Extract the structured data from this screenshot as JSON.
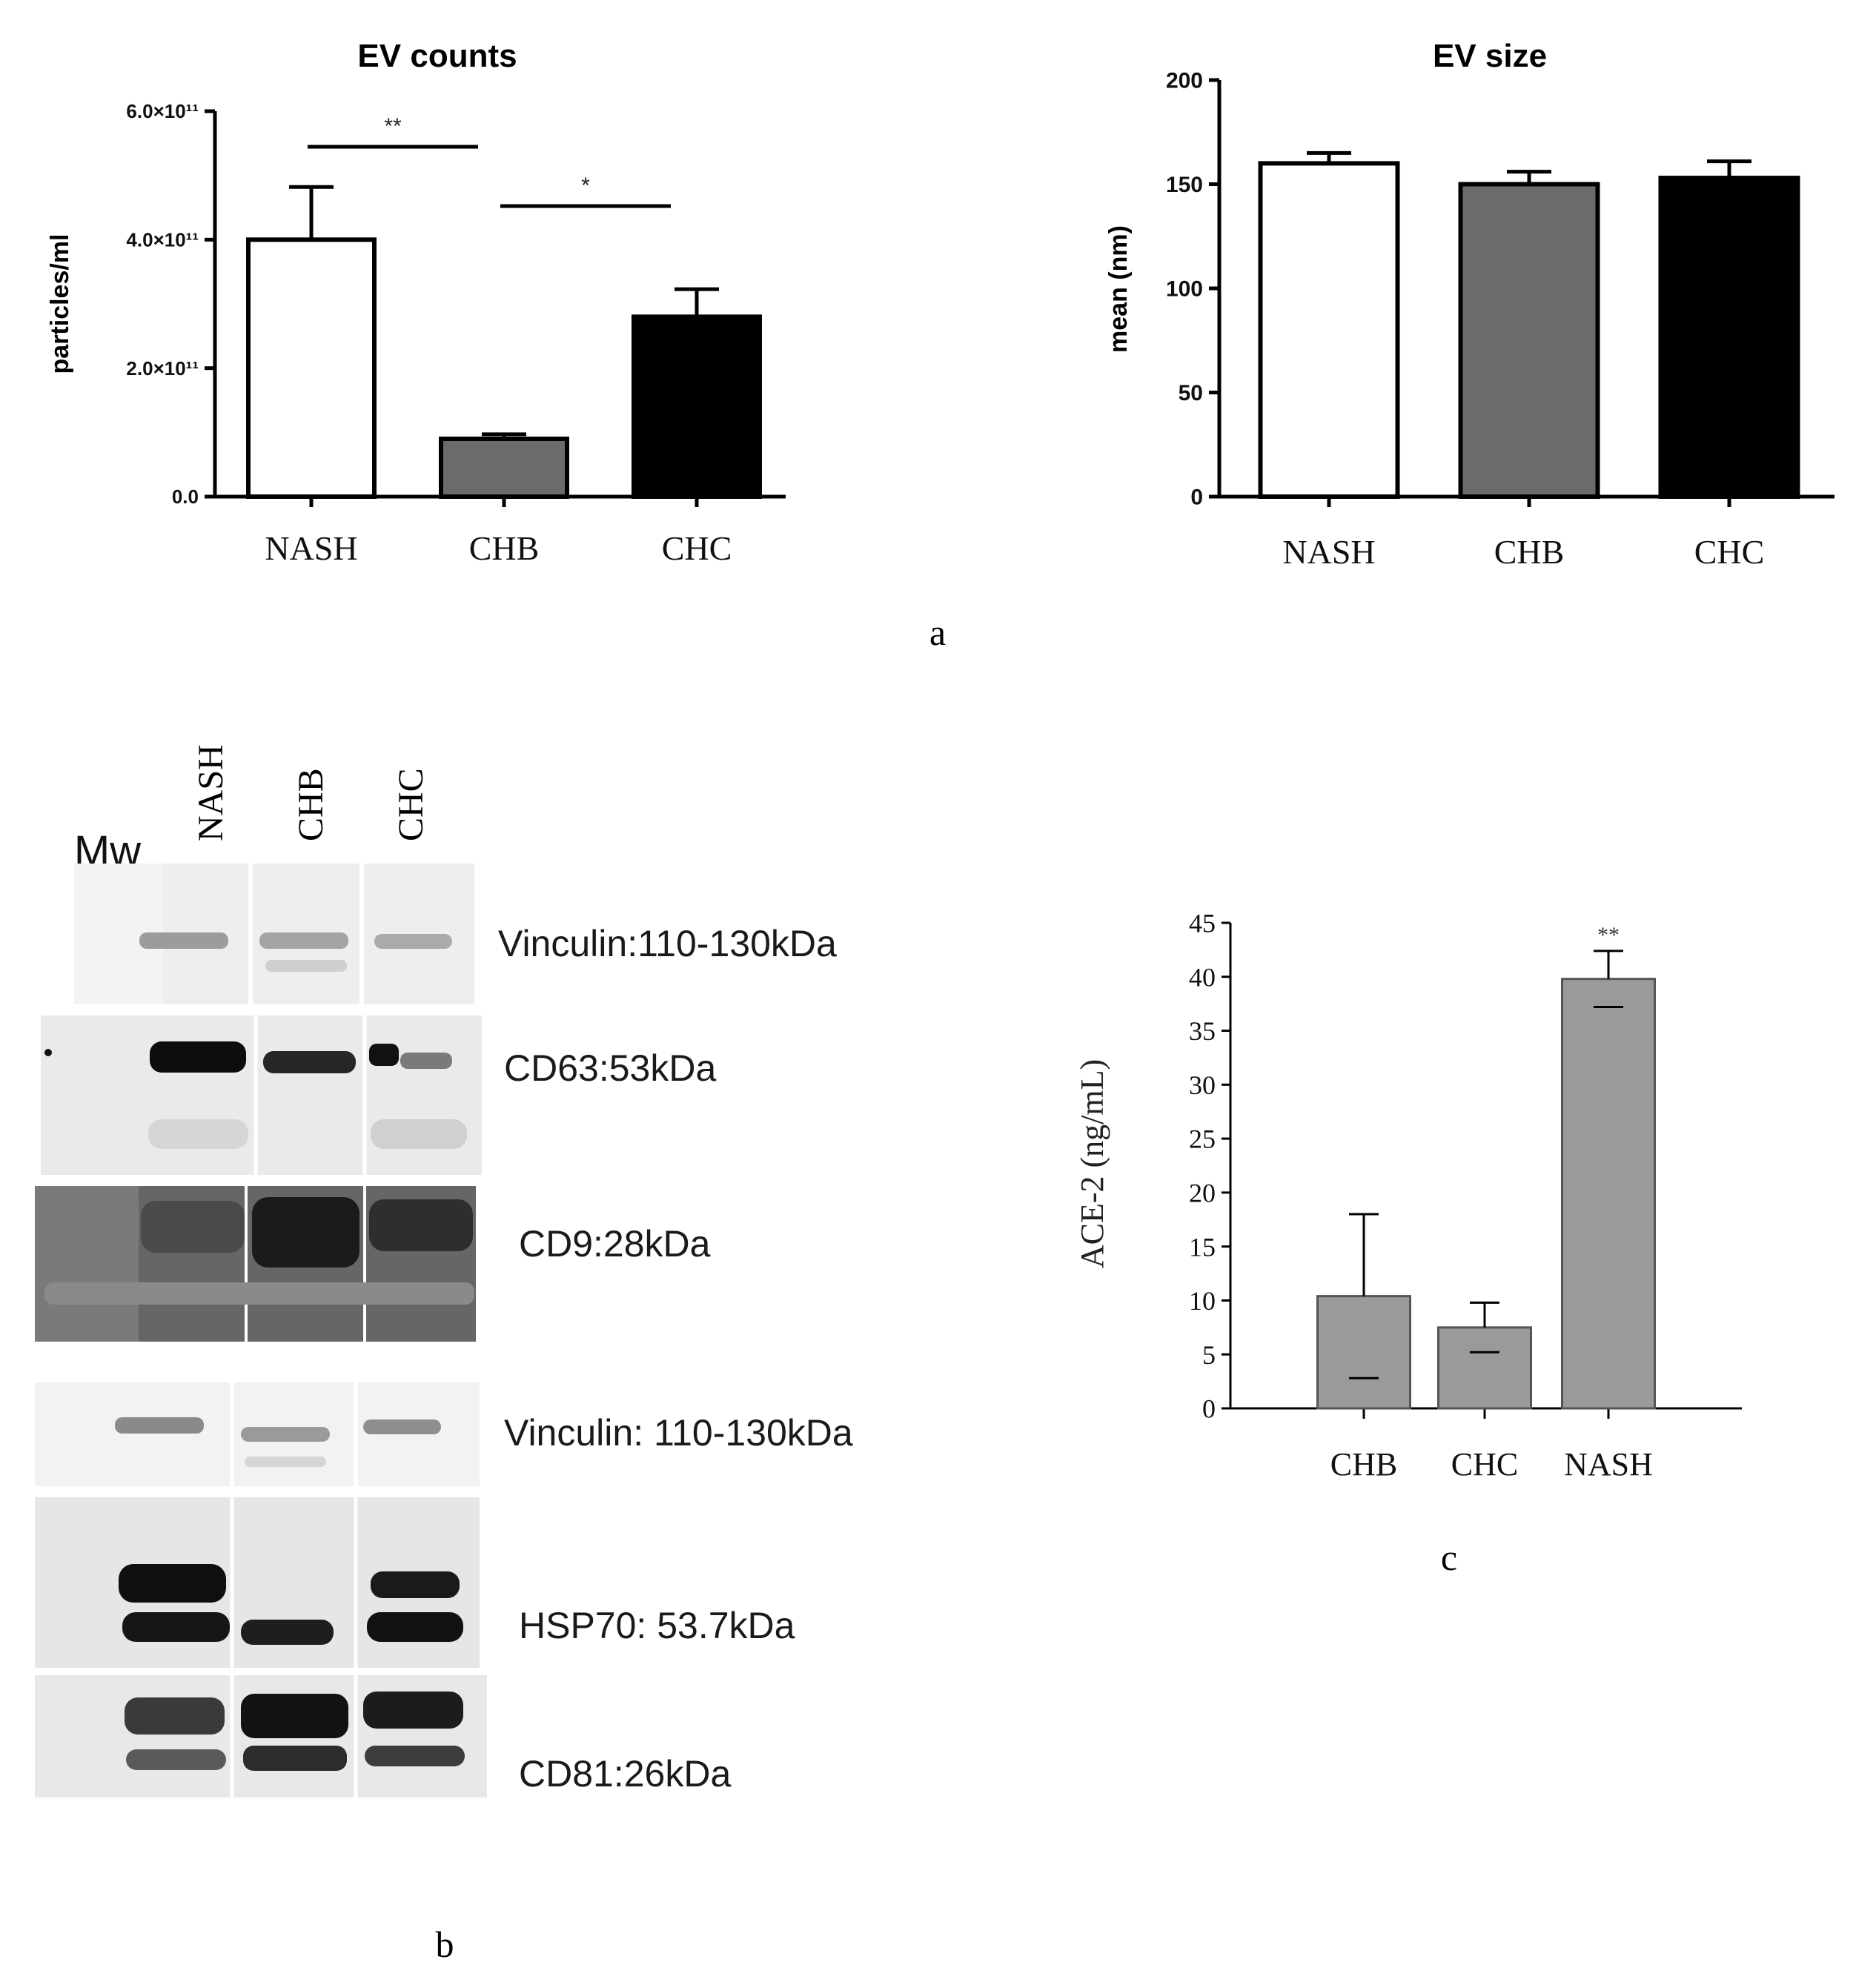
{
  "chart_data": [
    {
      "panel": "a",
      "type": "bar",
      "title": "EV counts",
      "ylabel": "particles/ml",
      "xlabel": "",
      "categories": [
        "NASH",
        "CHB",
        "CHC"
      ],
      "values": [
        400000000000.0,
        90000000000.0,
        280000000000.0
      ],
      "errors": [
        82000000000.0,
        7000000000.0,
        43000000000.0
      ],
      "bar_colors": [
        "#ffffff",
        "#6b6b6b",
        "#000000"
      ],
      "ylim": [
        0,
        600000000000.0
      ],
      "yticks": [
        0,
        200000000000.0,
        400000000000.0,
        600000000000.0
      ],
      "ytick_labels": [
        "0.0",
        "2.0×10¹¹",
        "4.0×10¹¹",
        "6.0×10¹¹"
      ],
      "significance": [
        {
          "from": "NASH",
          "to": "CHB",
          "label": "**"
        },
        {
          "from": "CHB",
          "to": "CHC",
          "label": "*"
        }
      ],
      "grid": false
    },
    {
      "panel": "a",
      "type": "bar",
      "title": "EV size",
      "ylabel": "mean (nm)",
      "xlabel": "",
      "categories": [
        "NASH",
        "CHB",
        "CHC"
      ],
      "values": [
        160,
        150,
        153
      ],
      "errors": [
        5,
        6,
        8
      ],
      "bar_colors": [
        "#ffffff",
        "#6b6b6b",
        "#000000"
      ],
      "ylim": [
        0,
        200
      ],
      "yticks": [
        0,
        50,
        100,
        150,
        200
      ],
      "ytick_labels": [
        "0",
        "50",
        "100",
        "150",
        "200"
      ],
      "grid": false
    },
    {
      "panel": "c",
      "type": "bar",
      "title": "",
      "ylabel": "ACE-2 (ng/mL)",
      "xlabel": "",
      "categories": [
        "CHB",
        "CHC",
        "NASH"
      ],
      "values": [
        10.4,
        7.5,
        39.8
      ],
      "errors": [
        7.6,
        2.3,
        2.6
      ],
      "bar_colors": [
        "#9a9a9a",
        "#9a9a9a",
        "#9a9a9a"
      ],
      "ylim": [
        0,
        45
      ],
      "yticks": [
        0,
        5,
        10,
        15,
        20,
        25,
        30,
        35,
        40,
        45
      ],
      "ytick_labels": [
        "0",
        "5",
        "10",
        "15",
        "20",
        "25",
        "30",
        "35",
        "40",
        "45"
      ],
      "annotations": [
        {
          "category": "NASH",
          "label": "**"
        }
      ],
      "grid": false
    }
  ],
  "panel_labels": {
    "a": "a",
    "b": "b",
    "c": "c"
  },
  "western_blot": {
    "marker_label": "Mw",
    "lanes": [
      "NASH",
      "CHB",
      "CHC"
    ],
    "bands": [
      "Vinculin:110-130kDa",
      "CD63:53kDa",
      "CD9:28kDa",
      "Vinculin: 110-130kDa",
      "HSP70: 53.7kDa",
      "CD81:26kDa"
    ]
  }
}
